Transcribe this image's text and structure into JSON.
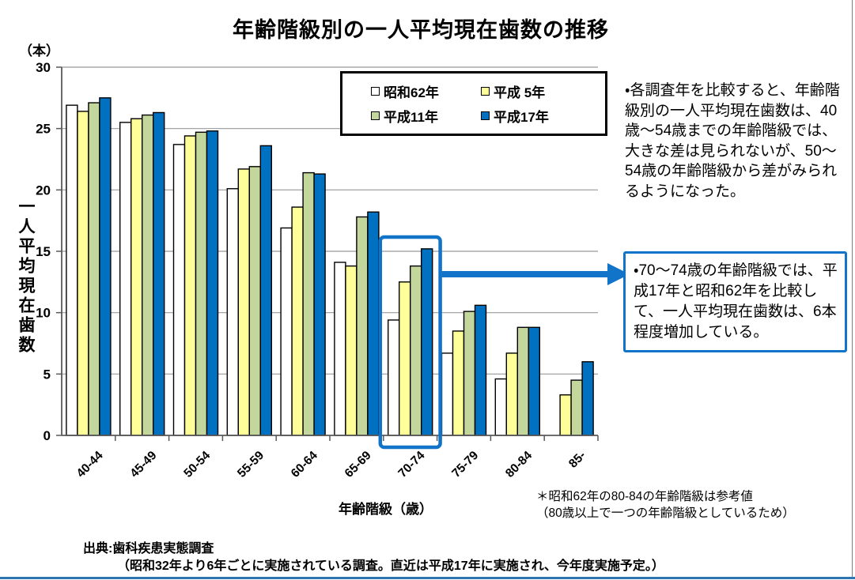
{
  "page": {
    "title": "年齢階級別の一人平均現在歯数の推移"
  },
  "chart_data": {
    "type": "bar",
    "title": "年齢階級別の一人平均現在歯数の推移",
    "unit_label": "（本）",
    "xlabel": "年齢階級（歳）",
    "ylabel": "一人平均現在歯数",
    "ylim": [
      0,
      30
    ],
    "ytick_step": 5,
    "yticks": [
      30,
      25,
      20,
      15,
      10,
      5,
      0
    ],
    "grid": true,
    "legend_position": "top-center",
    "categories": [
      "40-44",
      "45-49",
      "50-54",
      "55-59",
      "60-64",
      "65-69",
      "70-74",
      "75-79",
      "80-84",
      "85-"
    ],
    "series": [
      {
        "name": "昭和62年",
        "color": "#FFFFFF",
        "values": [
          26.9,
          25.5,
          23.7,
          20.1,
          16.9,
          14.1,
          9.4,
          6.7,
          4.6,
          null
        ]
      },
      {
        "name": "平成 5年",
        "color": "#FFFF99",
        "values": [
          26.4,
          25.8,
          24.4,
          21.7,
          18.6,
          13.8,
          12.5,
          8.5,
          6.7,
          3.3
        ]
      },
      {
        "name": "平成11年",
        "color": "#C3D69B",
        "values": [
          27.1,
          26.1,
          24.7,
          21.9,
          21.4,
          17.8,
          13.8,
          10.1,
          8.8,
          4.5
        ]
      },
      {
        "name": "平成17年",
        "color": "#0070C0",
        "values": [
          27.5,
          26.3,
          24.8,
          23.6,
          21.3,
          18.2,
          15.2,
          10.6,
          8.8,
          6.0
        ]
      }
    ],
    "highlighted_category": "70-74"
  },
  "annotations": {
    "comparison_note": "・各調査年を比較すると、年齢階級別の一人平均現在歯数は、40歳～54歳までの年齢階級では、大きな差は見られないが、50～54歳の年齢階級から差がみられるようになった。",
    "highlight_note": "・70～74歳の年齢階級では、平成17年と昭和62年を比較して、一人平均現在歯数は、6本程度増加している。"
  },
  "footnote": "＊昭和62年の80-84の年齢階級は参考値\n（80歳以上で一つの年齢階級としているため）",
  "source": {
    "line1": "出典:歯科疾患実態調査",
    "line2": "（昭和32年より6年ごとに実施されている調査。直近は平成17年に実施され、今年度実施予定。）"
  },
  "colors": {
    "accent_blue": "#1274C8",
    "grid_gray": "#999999",
    "axis_gray": "#595959",
    "bottom_bar_blue": "#2E75B6"
  }
}
